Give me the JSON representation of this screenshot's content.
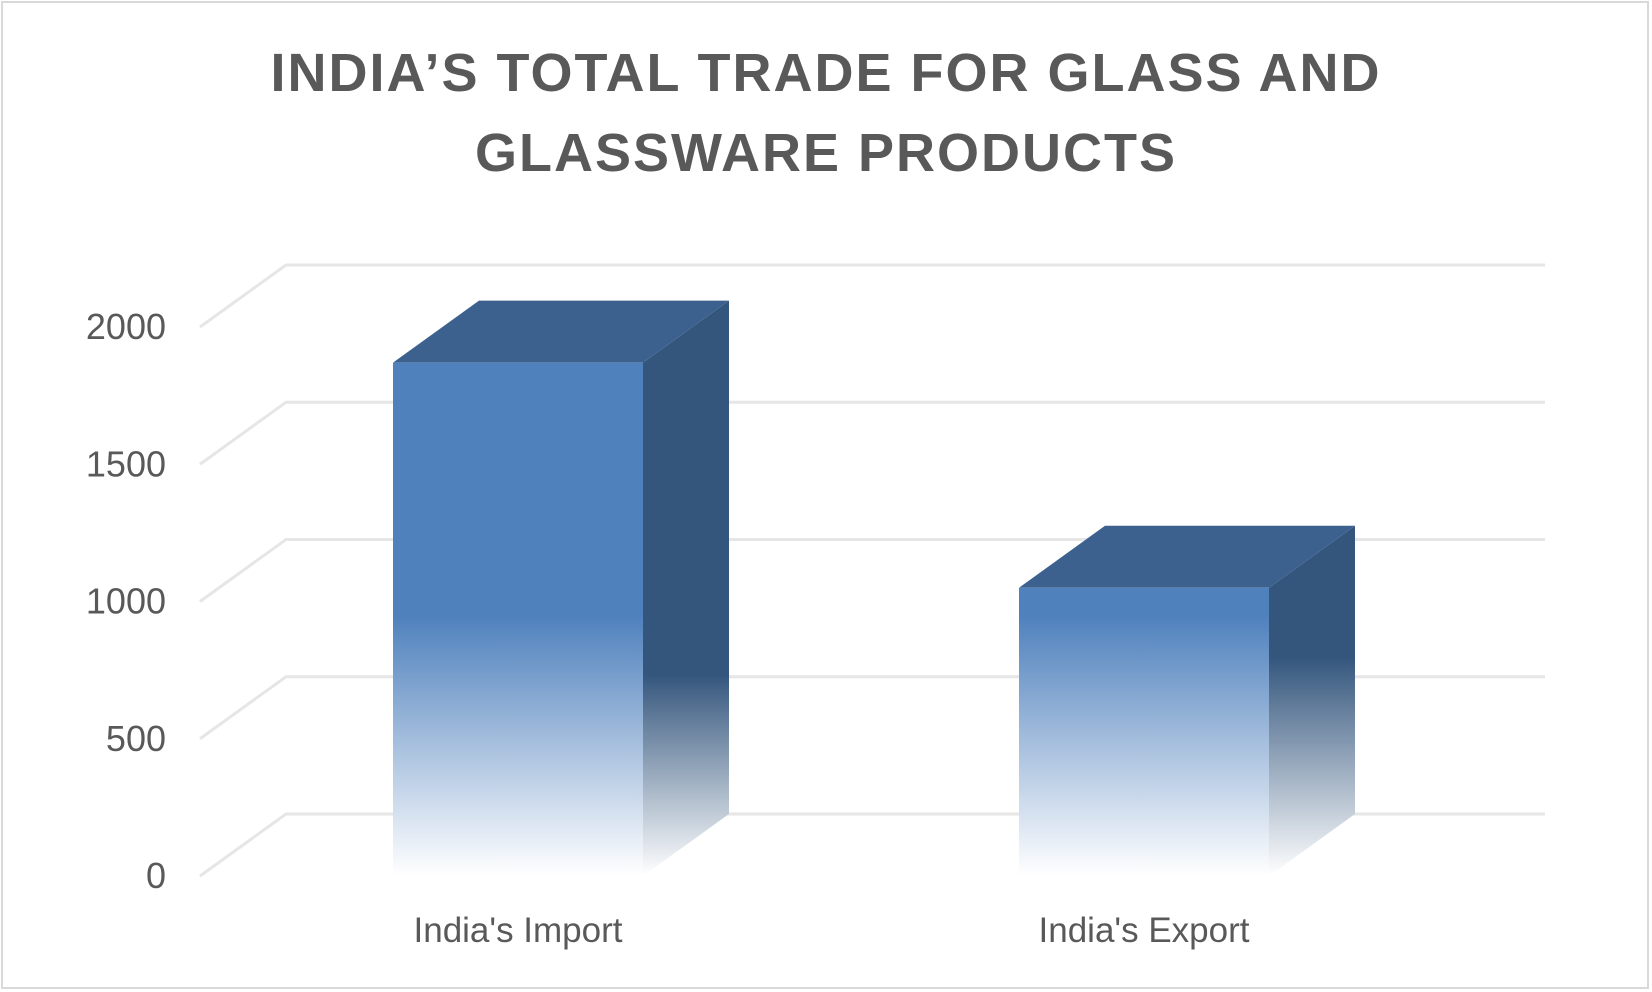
{
  "chart_data": {
    "type": "bar",
    "title_lines": [
      "INDIA’S TOTAL TRADE FOR GLASS AND",
      "GLASSWARE PRODUCTS"
    ],
    "categories": [
      "India's Import",
      "India's Export"
    ],
    "values": [
      1870,
      1050
    ],
    "ylim": [
      0,
      2200
    ],
    "yticks": [
      0,
      500,
      1000,
      1500,
      2000
    ],
    "xlabel": "",
    "ylabel": "",
    "grid": true,
    "style": "3d-column",
    "colors": {
      "front_top": "#4f81bd",
      "front_mid": "#4f81bd",
      "side": "#34567d",
      "top": "#3d618e",
      "grid": "#e6e6e6",
      "text": "#595959"
    }
  }
}
